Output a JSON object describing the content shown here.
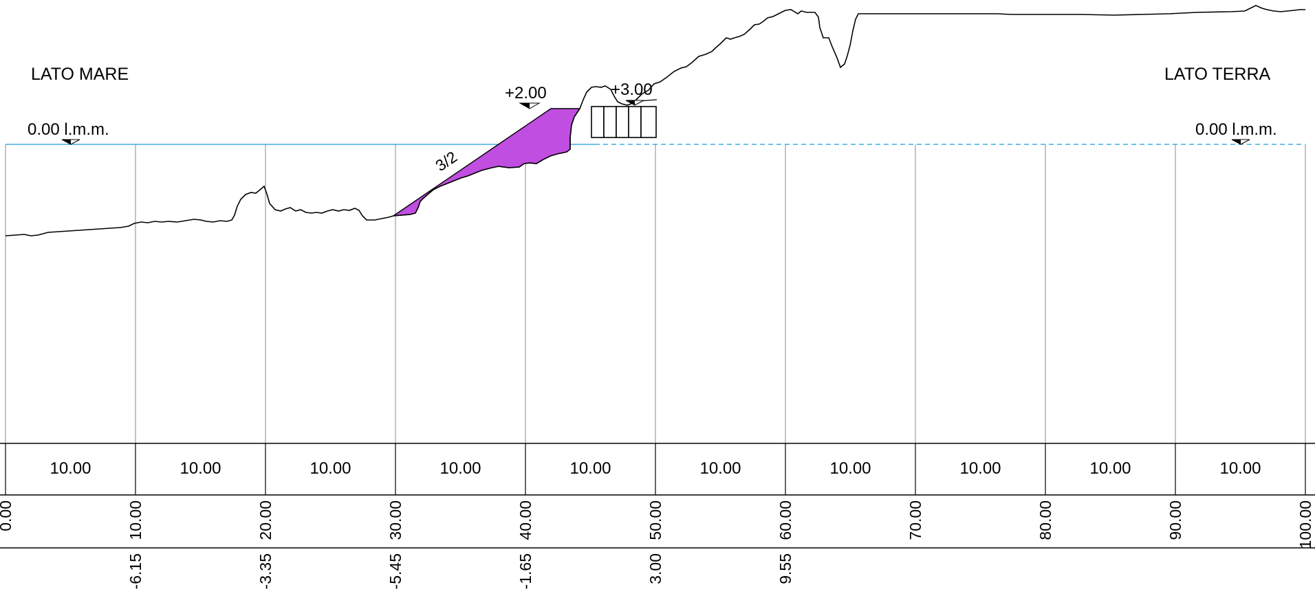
{
  "labels": {
    "sea_side": "LATO MARE",
    "land_side": "LATO TERRA",
    "datum_left": "0.00 l.m.m.",
    "datum_right": "0.00 l.m.m.",
    "crest_level": "+2.00",
    "top_level": "+3.00",
    "slope_ratio": "3/2"
  },
  "profile": {
    "progressive": [
      0,
      10,
      20,
      30,
      40,
      50,
      60,
      70,
      80,
      90,
      100
    ],
    "progressive_labels": [
      "0.00",
      "10.00",
      "20.00",
      "30.00",
      "40.00",
      "50.00",
      "60.00",
      "70.00",
      "80.00",
      "90.00",
      "100.00"
    ],
    "partial_distances": [
      "10.00",
      "10.00",
      "10.00",
      "10.00",
      "10.00",
      "10.00",
      "10.00",
      "10.00",
      "10.00",
      "10.00"
    ],
    "ground_elevations": [
      "",
      "-6.15",
      "-3.35",
      "-5.45",
      "-1.65",
      "3.00",
      "9.55",
      "",
      "",
      "",
      ""
    ]
  },
  "colors": {
    "sea_level": "#1e9bd7",
    "fill_section": "#c04ee0",
    "grid": "#8a8a8a",
    "outline": "#000000"
  }
}
